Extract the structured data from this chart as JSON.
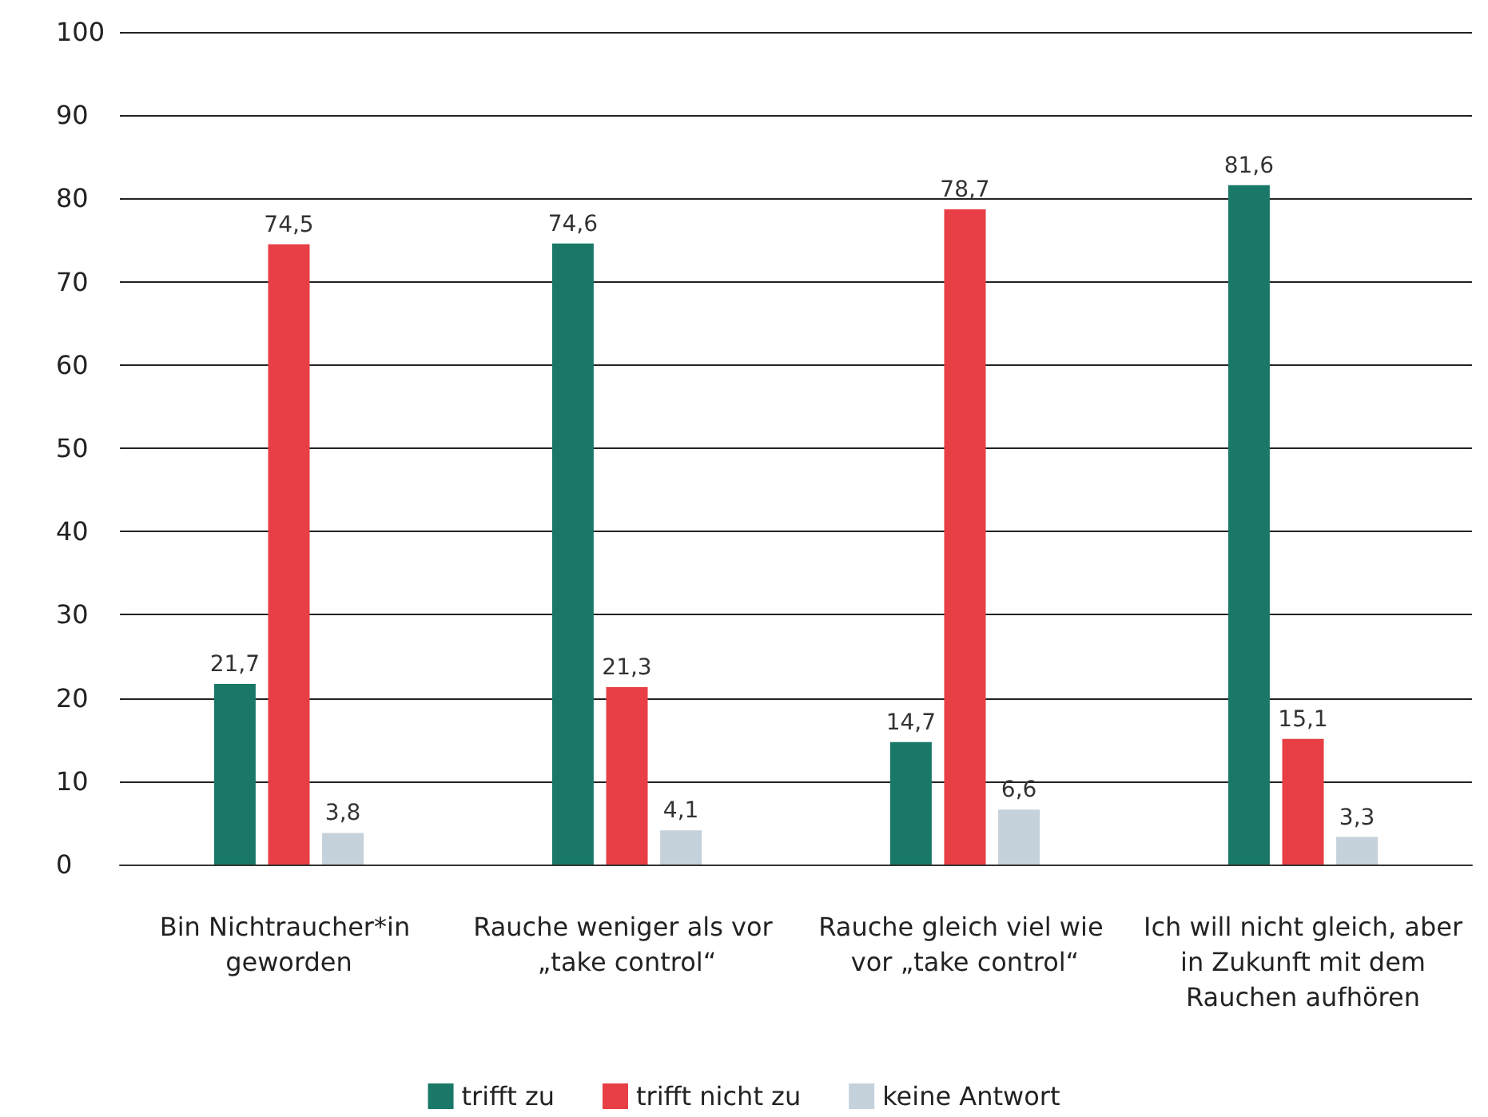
{
  "chart_data": {
    "type": "bar",
    "categories": [
      "Bin Nichtraucher*in geworden",
      "Rauche weniger als vor „take control“",
      "Rauche gleich viel wie vor „take control“",
      "Ich will nicht gleich, aber in Zukunft mit dem Rauchen aufhören"
    ],
    "series": [
      {
        "name": "trifft zu",
        "color": "#1a7868",
        "values": [
          21.7,
          74.6,
          14.7,
          81.6
        ],
        "value_labels": [
          "21,7",
          "74,6",
          "14,7",
          "81,6"
        ]
      },
      {
        "name": "trifft nicht zu",
        "color": "#e83e45",
        "values": [
          74.5,
          21.3,
          78.7,
          15.1
        ],
        "value_labels": [
          "74,5",
          "21,3",
          "78,7",
          "15,1"
        ]
      },
      {
        "name": "keine Antwort",
        "color": "#c5d1db",
        "values": [
          3.8,
          4.1,
          6.6,
          3.3
        ],
        "value_labels": [
          "3,8",
          "4,1",
          "6,6",
          "3,3"
        ]
      }
    ],
    "ylim": [
      0,
      100
    ],
    "yticks": [
      0,
      10,
      20,
      30,
      40,
      50,
      60,
      70,
      80,
      90,
      100
    ],
    "grid": "y",
    "legend": "bottom"
  }
}
